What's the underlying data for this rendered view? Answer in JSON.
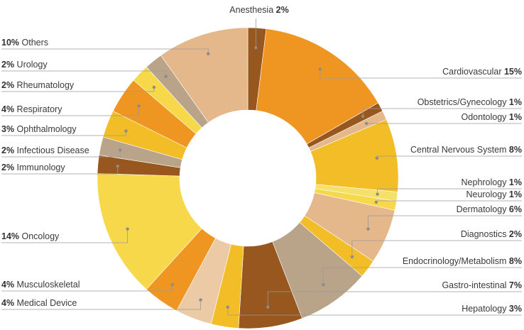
{
  "chart_data": {
    "type": "pie",
    "donut": true,
    "start_angle_deg": 0,
    "slices": [
      {
        "label": "Anesthesia",
        "value": 2,
        "pct_text": "2%",
        "color": "#98571f"
      },
      {
        "label": "Cardiovascular",
        "value": 15,
        "pct_text": "15%",
        "color": "#ef9522"
      },
      {
        "label": "Obstetrics/Gynecology",
        "value": 1,
        "pct_text": "1%",
        "color": "#98571f"
      },
      {
        "label": "Odontology",
        "value": 1,
        "pct_text": "1%",
        "color": "#e4b88b"
      },
      {
        "label": "Central Nervous System",
        "value": 8,
        "pct_text": "8%",
        "color": "#f2bd27"
      },
      {
        "label": "Nephrology",
        "value": 1,
        "pct_text": "1%",
        "color": "#f5e06a"
      },
      {
        "label": "Neurology",
        "value": 1,
        "pct_text": "1%",
        "color": "#f7d84a"
      },
      {
        "label": "Dermatology",
        "value": 6,
        "pct_text": "6%",
        "color": "#e4b88b"
      },
      {
        "label": "Diagnostics",
        "value": 2,
        "pct_text": "2%",
        "color": "#f2bd27"
      },
      {
        "label": "Endocrinology/Metabolism",
        "value": 8,
        "pct_text": "8%",
        "color": "#b9a48a"
      },
      {
        "label": "Gastro-intestinal",
        "value": 7,
        "pct_text": "7%",
        "color": "#98571f"
      },
      {
        "label": "Hepatology",
        "value": 3,
        "pct_text": "3%",
        "color": "#f2bd27"
      },
      {
        "label": "Medical Device",
        "value": 4,
        "pct_text": "4%",
        "color": "#eccaa6"
      },
      {
        "label": "Musculoskeletal",
        "value": 4,
        "pct_text": "4%",
        "color": "#ef9522"
      },
      {
        "label": "Oncology",
        "value": 14,
        "pct_text": "14%",
        "color": "#f6d84a"
      },
      {
        "label": "Immunology",
        "value": 2,
        "pct_text": "2%",
        "color": "#98571f"
      },
      {
        "label": "Infectious Disease",
        "value": 2,
        "pct_text": "2%",
        "color": "#b9a48a"
      },
      {
        "label": "Ophthalmology",
        "value": 3,
        "pct_text": "3%",
        "color": "#f2bd27"
      },
      {
        "label": "Respiratory",
        "value": 4,
        "pct_text": "4%",
        "color": "#ef9522"
      },
      {
        "label": "Rheumatology",
        "value": 2,
        "pct_text": "2%",
        "color": "#f6d84a"
      },
      {
        "label": "Urology",
        "value": 2,
        "pct_text": "2%",
        "color": "#b9a48a"
      },
      {
        "label": "Others",
        "value": 10,
        "pct_text": "10%",
        "color": "#e4b88b"
      }
    ]
  }
}
